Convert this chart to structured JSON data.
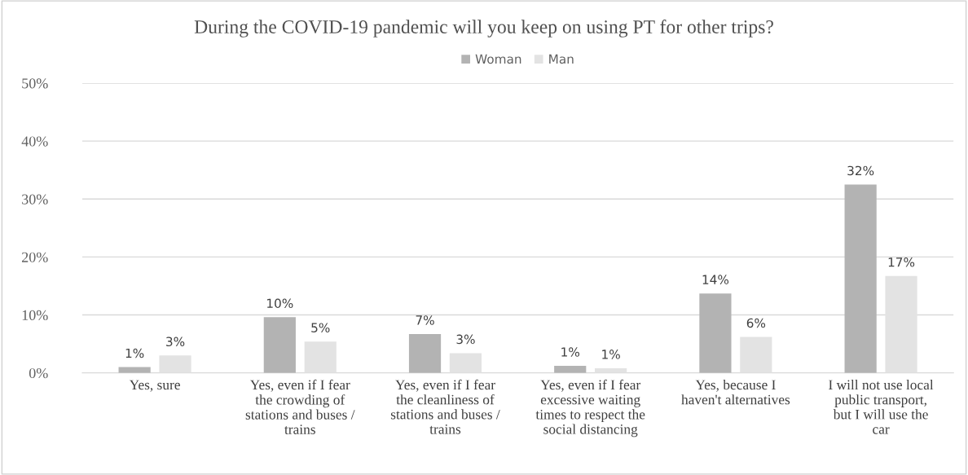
{
  "chart_data": {
    "type": "bar",
    "title": "During the COVID-19 pandemic will you keep on using PT for other trips?",
    "categories": [
      "Yes, sure",
      "Yes, even if I fear\nthe crowding of\nstations and buses /\ntrains",
      "Yes, even if I fear\nthe cleanliness of\nstations and buses /\ntrains",
      "Yes, even if I fear\nexcessive waiting\ntimes to respect the\nsocial distancing",
      "Yes, because I\nhaven't alternatives",
      "I will not use local\npublic transport,\nbut I will use the\ncar"
    ],
    "series": [
      {
        "name": "Woman",
        "color": "#b3b3b3",
        "values": [
          1.0,
          9.6,
          6.7,
          1.2,
          13.7,
          32.5
        ],
        "value_labels": [
          "1%",
          "10%",
          "7%",
          "1%",
          "14%",
          "32%"
        ]
      },
      {
        "name": "Man",
        "color": "#e3e3e3",
        "values": [
          3.0,
          5.4,
          3.4,
          0.8,
          6.2,
          16.7
        ],
        "value_labels": [
          "3%",
          "5%",
          "3%",
          "1%",
          "6%",
          "17%"
        ]
      }
    ],
    "ylim": [
      0,
      50
    ],
    "yticks": [
      {
        "value": 0,
        "label": "0%"
      },
      {
        "value": 10,
        "label": "10%"
      },
      {
        "value": 20,
        "label": "20%"
      },
      {
        "value": 30,
        "label": "30%"
      },
      {
        "value": 40,
        "label": "40%"
      },
      {
        "value": 50,
        "label": "50%"
      }
    ],
    "grid": "y",
    "legend": "top"
  }
}
